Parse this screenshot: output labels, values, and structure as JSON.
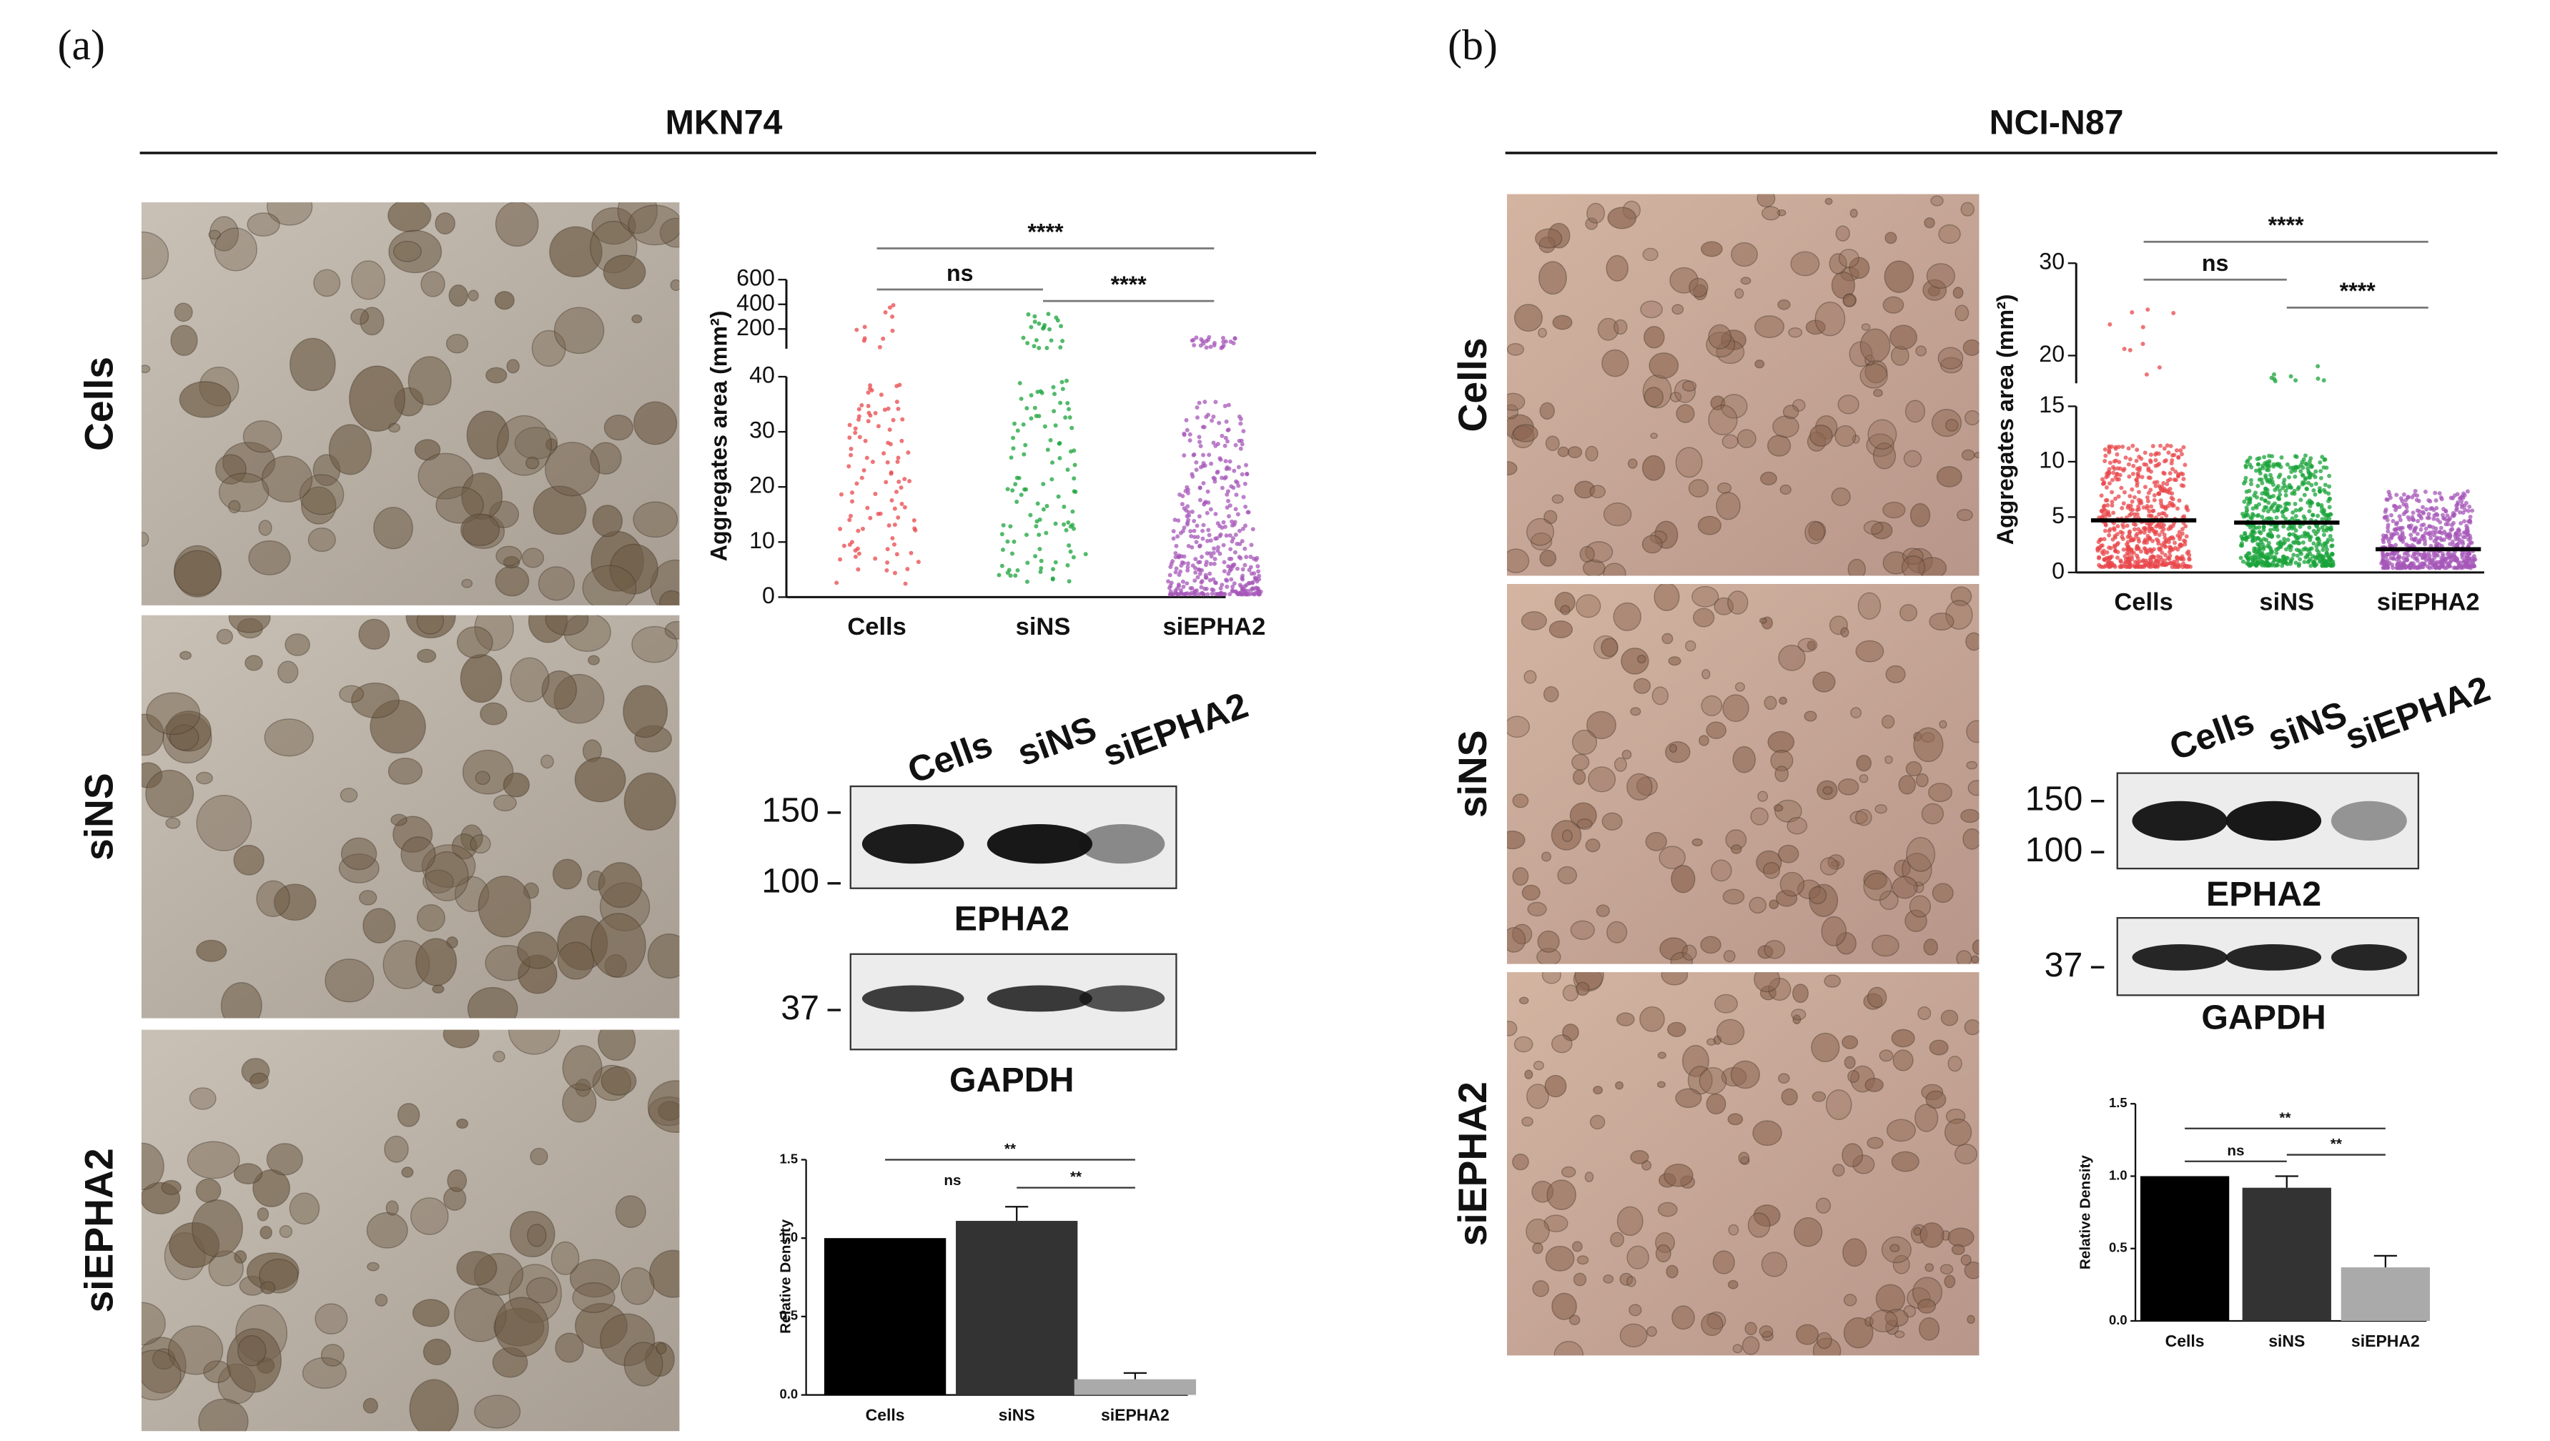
{
  "panels": [
    {
      "label": "(a)",
      "title": "MKN74",
      "rows": [
        "Cells",
        "siNS",
        "siEPHA2"
      ],
      "scatter": {
        "type": "scatter",
        "ylabel": "Aggregates area (mm²)",
        "categories": [
          "Cells",
          "siNS",
          "siEPHA2"
        ],
        "colors": [
          "#e8474b",
          "#1aa33a",
          "#a557b8"
        ],
        "ylim": [
          0,
          40
        ],
        "yticks": [
          0,
          10,
          20,
          30,
          40
        ],
        "ylim_break": [
          40,
          600
        ],
        "yticks_break": [
          200,
          400,
          600
        ],
        "significance": [
          {
            "label": "ns",
            "pair": [
              "Cells",
              "siNS"
            ]
          },
          {
            "label": "****",
            "pair": [
              "siNS",
              "siEPHA2"
            ]
          },
          {
            "label": "****",
            "pair": [
              "Cells",
              "siEPHA2"
            ]
          }
        ]
      },
      "blot": {
        "lanes": [
          "Cells",
          "siNS",
          "siEPHA2"
        ],
        "target": {
          "protein": "EPHA2",
          "markers": [
            "150",
            "100"
          ]
        },
        "control": {
          "protein": "GAPDH",
          "markers": [
            "37"
          ]
        }
      },
      "bar": {
        "type": "bar",
        "ylabel": "Relative Density",
        "categories": [
          "Cells",
          "siNS",
          "siEPHA2"
        ],
        "values": [
          1.0,
          1.11,
          0.1
        ],
        "errors": [
          null,
          0.09,
          0.04
        ],
        "colors": [
          "#000000",
          "#333333",
          "#aaaaaa"
        ],
        "ylim": [
          0,
          1.5
        ],
        "yticks": [
          {
            "value": 0,
            "label": "0.0"
          },
          {
            "value": 0.5,
            "label": "0.5"
          },
          {
            "value": 1,
            "label": "1.0"
          },
          {
            "value": 1.5,
            "label": "1.5"
          }
        ],
        "significance": [
          {
            "label": "ns",
            "pair": [
              "siNS"
            ]
          },
          {
            "label": "**",
            "pair": [
              "siNS",
              "siEPHA2"
            ]
          },
          {
            "label": "**",
            "pair": [
              "Cells",
              "siEPHA2"
            ]
          }
        ]
      }
    },
    {
      "label": "(b)",
      "title": "NCI-N87",
      "rows": [
        "Cells",
        "siNS",
        "siEPHA2"
      ],
      "scatter": {
        "type": "scatter",
        "ylabel": "Aggregates area (mm²)",
        "categories": [
          "Cells",
          "siNS",
          "siEPHA2"
        ],
        "colors": [
          "#e8474b",
          "#1aa33a",
          "#a557b8"
        ],
        "medians": [
          4.7,
          4.5,
          2.1
        ],
        "ylim": [
          0,
          15
        ],
        "yticks": [
          0,
          5,
          10,
          15
        ],
        "ylim_break": [
          17,
          30
        ],
        "yticks_break": [
          20,
          30
        ],
        "significance": [
          {
            "label": "ns",
            "pair": [
              "Cells",
              "siNS"
            ]
          },
          {
            "label": "****",
            "pair": [
              "siNS",
              "siEPHA2"
            ]
          },
          {
            "label": "****",
            "pair": [
              "Cells",
              "siEPHA2"
            ]
          }
        ]
      },
      "blot": {
        "lanes": [
          "Cells",
          "siNS",
          "siEPHA2"
        ],
        "target": {
          "protein": "EPHA2",
          "markers": [
            "150",
            "100"
          ]
        },
        "control": {
          "protein": "GAPDH",
          "markers": [
            "37"
          ]
        }
      },
      "bar": {
        "type": "bar",
        "ylabel": "Relative Density",
        "categories": [
          "Cells",
          "siNS",
          "siEPHA2"
        ],
        "values": [
          1.0,
          0.92,
          0.37
        ],
        "errors": [
          null,
          0.08,
          0.08
        ],
        "colors": [
          "#000000",
          "#333333",
          "#aaaaaa"
        ],
        "ylim": [
          0,
          1.5
        ],
        "yticks": [
          {
            "value": 0,
            "label": "0.0"
          },
          {
            "value": 0.5,
            "label": "0.5"
          },
          {
            "value": 1,
            "label": "1.0"
          },
          {
            "value": 1.5,
            "label": "1.5"
          }
        ],
        "significance": [
          {
            "label": "ns",
            "pair": [
              "Cells",
              "siNS"
            ]
          },
          {
            "label": "**",
            "pair": [
              "siNS",
              "siEPHA2"
            ]
          },
          {
            "label": "**",
            "pair": [
              "Cells",
              "siEPHA2"
            ]
          }
        ]
      }
    }
  ]
}
